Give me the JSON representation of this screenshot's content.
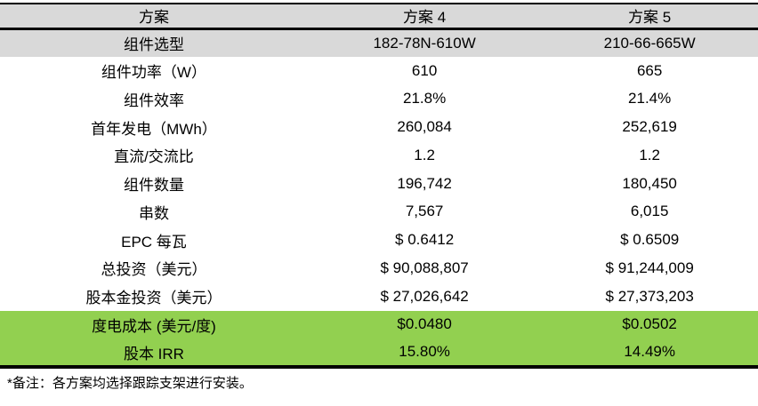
{
  "colors": {
    "header_bg": "#D9D9D9",
    "highlight_green": "#92D050",
    "border": "#000000",
    "text": "#000000"
  },
  "table": {
    "columns": [
      "方案",
      "方案 4",
      "方案 5"
    ],
    "rows": [
      {
        "label": "组件选型",
        "plan4": "182-78N-610W",
        "plan5": "210-66-665W",
        "style": "grey"
      },
      {
        "label": "组件功率（W）",
        "plan4": "610",
        "plan5": "665",
        "style": "white"
      },
      {
        "label": "组件效率",
        "plan4": "21.8%",
        "plan5": "21.4%",
        "style": "white"
      },
      {
        "label": "首年发电（MWh）",
        "plan4": "260,084",
        "plan5": "252,619",
        "style": "white"
      },
      {
        "label": "直流/交流比",
        "plan4": "1.2",
        "plan5": "1.2",
        "style": "white"
      },
      {
        "label": "组件数量",
        "plan4": "196,742",
        "plan5": "180,450",
        "style": "white"
      },
      {
        "label": "串数",
        "plan4": "7,567",
        "plan5": "6,015",
        "style": "white"
      },
      {
        "label": "EPC 每瓦",
        "plan4": "$ 0.6412",
        "plan5": "$ 0.6509",
        "style": "white"
      },
      {
        "label": "总投资（美元）",
        "plan4": "$ 90,088,807",
        "plan5": "$ 91,244,009",
        "style": "white"
      },
      {
        "label": "股本金投资（美元）",
        "plan4": "$ 27,026,642",
        "plan5": "$ 27,373,203",
        "style": "white"
      },
      {
        "label": "度电成本 (美元/度)",
        "plan4": "$0.0480",
        "plan5": "$0.0502",
        "style": "green"
      },
      {
        "label": "股本 IRR",
        "plan4": "15.80%",
        "plan5": "14.49%",
        "style": "green"
      }
    ],
    "footnote": "*备注：各方案均选择跟踪支架进行安装。"
  }
}
